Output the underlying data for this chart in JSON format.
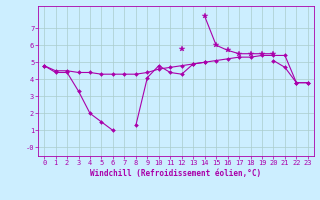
{
  "xlabel": "Windchill (Refroidissement éolien,°C)",
  "x": [
    0,
    1,
    2,
    3,
    4,
    5,
    6,
    7,
    8,
    9,
    10,
    11,
    12,
    13,
    14,
    15,
    16,
    17,
    18,
    19,
    20,
    21,
    22,
    23
  ],
  "line1": [
    4.8,
    4.4,
    4.4,
    3.3,
    2.0,
    1.5,
    1.0,
    null,
    1.3,
    4.1,
    4.8,
    4.4,
    4.3,
    4.9,
    5.0,
    null,
    null,
    null,
    null,
    null,
    5.1,
    4.7,
    3.8,
    3.8
  ],
  "line2": [
    4.8,
    4.5,
    4.5,
    4.4,
    4.4,
    4.3,
    4.3,
    4.3,
    4.3,
    4.4,
    4.6,
    4.7,
    4.8,
    4.9,
    5.0,
    5.1,
    5.2,
    5.3,
    5.3,
    5.4,
    5.4,
    5.4,
    3.8,
    3.8
  ],
  "line3": [
    null,
    null,
    null,
    null,
    null,
    null,
    null,
    null,
    null,
    null,
    null,
    null,
    5.8,
    null,
    7.7,
    6.0,
    5.7,
    5.5,
    5.5,
    5.5,
    5.5,
    null,
    null,
    null
  ],
  "bg_color": "#cceeff",
  "line_color": "#aa00aa",
  "grid_color": "#aacccc",
  "ylim": [
    -0.5,
    8.3
  ],
  "xlim": [
    -0.5,
    23.5
  ],
  "yticks": [
    0,
    1,
    2,
    3,
    4,
    5,
    6,
    7
  ],
  "ytick_labels": [
    "-0",
    "1",
    "2",
    "3",
    "4",
    "5",
    "6",
    "7"
  ],
  "xticks": [
    0,
    1,
    2,
    3,
    4,
    5,
    6,
    7,
    8,
    9,
    10,
    11,
    12,
    13,
    14,
    15,
    16,
    17,
    18,
    19,
    20,
    21,
    22,
    23
  ]
}
